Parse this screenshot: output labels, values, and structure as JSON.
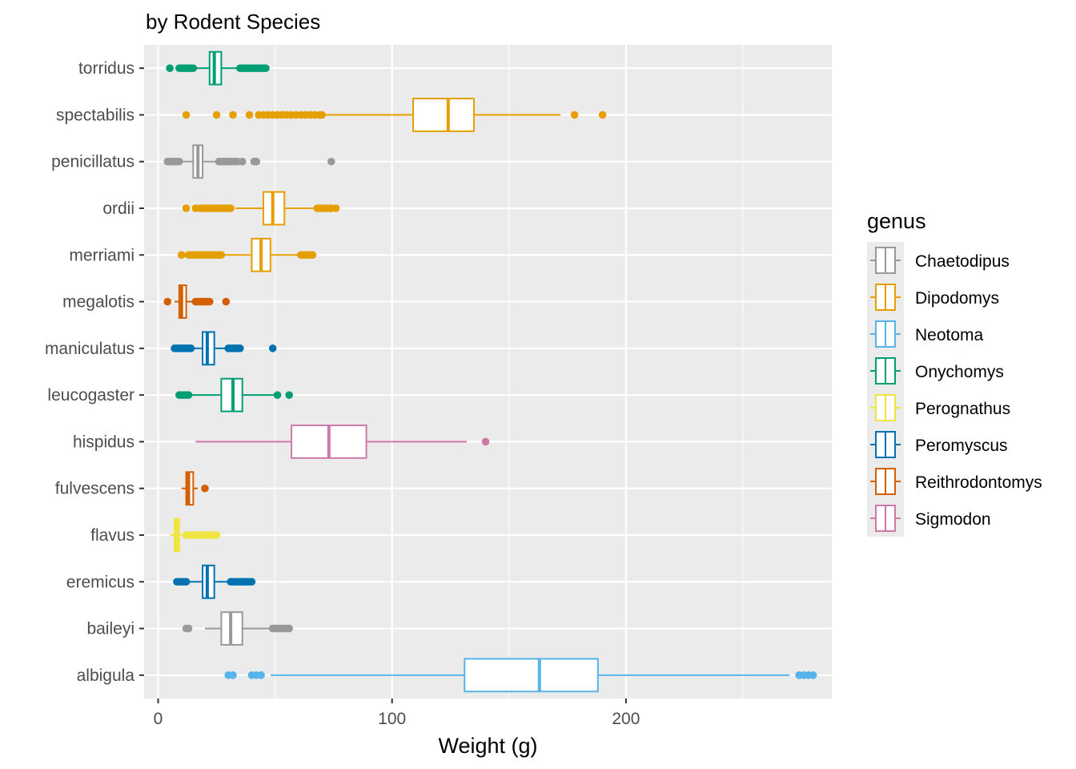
{
  "chart_data": {
    "type": "boxplot",
    "orientation": "horizontal",
    "subtitle": "by Rodent Species",
    "xlabel": "Weight (g)",
    "ylabel": "",
    "xlim": [
      -6,
      288
    ],
    "xticks": [
      0,
      100,
      200
    ],
    "minor_gridlines": [
      50,
      150,
      250
    ],
    "grid": true,
    "panel_background": "#ebebeb",
    "legend": {
      "title": "genus",
      "position": "right",
      "entries": [
        {
          "name": "Chaetodipus",
          "color": "#999999"
        },
        {
          "name": "Dipodomys",
          "color": "#E69F00"
        },
        {
          "name": "Neotoma",
          "color": "#56B4E9"
        },
        {
          "name": "Onychomys",
          "color": "#009E73"
        },
        {
          "name": "Perognathus",
          "color": "#F0E442"
        },
        {
          "name": "Peromyscus",
          "color": "#0072B2"
        },
        {
          "name": "Reithrodontomys",
          "color": "#D55E00"
        },
        {
          "name": "Sigmodon",
          "color": "#CC79A7"
        }
      ]
    },
    "categories": [
      "torridus",
      "spectabilis",
      "penicillatus",
      "ordii",
      "merriami",
      "megalotis",
      "maniculatus",
      "leucogaster",
      "hispidus",
      "fulvescens",
      "flavus",
      "eremicus",
      "baileyi",
      "albigula"
    ],
    "boxes": [
      {
        "species": "torridus",
        "genus": "Onychomys",
        "whisker_low": 10,
        "q1": 22,
        "median": 24,
        "q3": 27,
        "whisker_high": 34,
        "outliers": [
          5,
          9,
          10,
          11,
          12,
          13,
          14,
          15,
          35,
          36,
          37,
          38,
          39,
          40,
          41,
          42,
          43,
          44,
          45,
          46
        ]
      },
      {
        "species": "spectabilis",
        "genus": "Dipodomys",
        "whisker_low": 71,
        "q1": 109,
        "median": 124,
        "q3": 135,
        "whisker_high": 172,
        "outliers": [
          12,
          25,
          32,
          39,
          43,
          45,
          47,
          49,
          51,
          53,
          55,
          57,
          59,
          61,
          63,
          65,
          67,
          69,
          70,
          178,
          190
        ]
      },
      {
        "species": "penicillatus",
        "genus": "Chaetodipus",
        "whisker_low": 10,
        "q1": 15,
        "median": 17,
        "q3": 19,
        "whisker_high": 25,
        "outliers": [
          4,
          5,
          6,
          7,
          8,
          9,
          26,
          27,
          28,
          29,
          30,
          31,
          32,
          33,
          34,
          36,
          41,
          42,
          74
        ]
      },
      {
        "species": "ordii",
        "genus": "Dipodomys",
        "whisker_low": 33,
        "q1": 45,
        "median": 49,
        "q3": 54,
        "whisker_high": 67,
        "outliers": [
          12,
          16,
          18,
          19,
          20,
          21,
          22,
          23,
          24,
          25,
          26,
          27,
          28,
          29,
          30,
          31,
          68,
          69,
          70,
          71,
          72,
          73,
          74,
          76
        ]
      },
      {
        "species": "merriami",
        "genus": "Dipodomys",
        "whisker_low": 28,
        "q1": 40,
        "median": 44,
        "q3": 48,
        "whisker_high": 60,
        "outliers": [
          10,
          13,
          14,
          15,
          16,
          17,
          18,
          19,
          20,
          21,
          22,
          23,
          24,
          25,
          26,
          27,
          61,
          62,
          63,
          64,
          65,
          66
        ]
      },
      {
        "species": "megalotis",
        "genus": "Reithrodontomys",
        "whisker_low": 7,
        "q1": 9,
        "median": 10,
        "q3": 12,
        "whisker_high": 15,
        "outliers": [
          4,
          16,
          17,
          18,
          19,
          20,
          21,
          22,
          29
        ]
      },
      {
        "species": "maniculatus",
        "genus": "Peromyscus",
        "whisker_low": 15,
        "q1": 19,
        "median": 21,
        "q3": 24,
        "whisker_high": 29,
        "outliers": [
          7,
          8,
          9,
          10,
          11,
          12,
          13,
          14,
          30,
          31,
          32,
          33,
          34,
          35,
          49
        ]
      },
      {
        "species": "leucogaster",
        "genus": "Onychomys",
        "whisker_low": 14,
        "q1": 27,
        "median": 32,
        "q3": 36,
        "whisker_high": 50,
        "outliers": [
          9,
          10,
          11,
          12,
          13,
          51,
          56
        ]
      },
      {
        "species": "hispidus",
        "genus": "Sigmodon",
        "whisker_low": 16,
        "q1": 57,
        "median": 73,
        "q3": 89,
        "whisker_high": 132,
        "outliers": [
          140
        ]
      },
      {
        "species": "fulvescens",
        "genus": "Reithrodontomys",
        "whisker_low": 10,
        "q1": 12,
        "median": 13,
        "q3": 15,
        "whisker_high": 17,
        "outliers": [
          20
        ]
      },
      {
        "species": "flavus",
        "genus": "Perognathus",
        "whisker_low": 5,
        "q1": 7,
        "median": 8,
        "q3": 9,
        "whisker_high": 11,
        "outliers": [
          12,
          13,
          14,
          15,
          16,
          17,
          18,
          19,
          20,
          21,
          22,
          23,
          24,
          25
        ]
      },
      {
        "species": "eremicus",
        "genus": "Peromyscus",
        "whisker_low": 13,
        "q1": 19,
        "median": 21,
        "q3": 24,
        "whisker_high": 30,
        "outliers": [
          8,
          9,
          10,
          11,
          12,
          31,
          32,
          33,
          34,
          35,
          36,
          37,
          38,
          39,
          40
        ]
      },
      {
        "species": "baileyi",
        "genus": "Chaetodipus",
        "whisker_low": 20,
        "q1": 27,
        "median": 31,
        "q3": 36,
        "whisker_high": 48,
        "outliers": [
          12,
          13,
          49,
          50,
          51,
          52,
          53,
          54,
          55,
          56
        ]
      },
      {
        "species": "albigula",
        "genus": "Neotoma",
        "whisker_low": 48,
        "q1": 131,
        "median": 163,
        "q3": 188,
        "whisker_high": 270,
        "outliers": [
          30,
          32,
          40,
          42,
          44,
          274,
          276,
          278,
          280
        ]
      }
    ]
  }
}
